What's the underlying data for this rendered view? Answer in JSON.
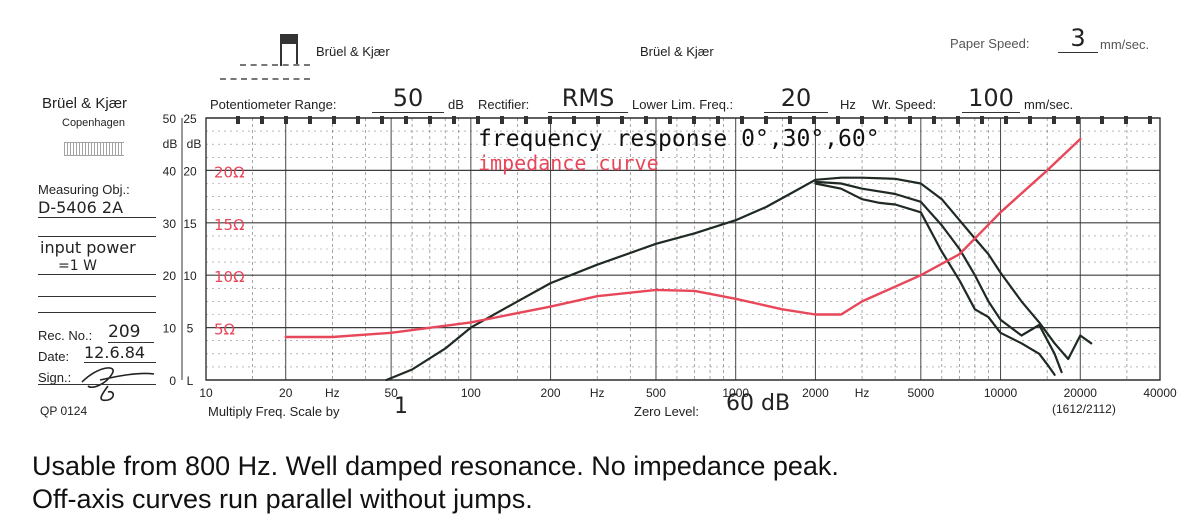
{
  "header": {
    "paper_speed_label": "Paper Speed:",
    "paper_speed_value": "3",
    "paper_speed_unit": "mm/sec.",
    "brand_center_left": "Brüel & Kjær",
    "brand_center": "Brüel & Kjær",
    "brand_left": "Brüel & Kjær",
    "city": "Copenhagen",
    "pot_range_label": "Potentiometer Range:",
    "pot_range_value": "50",
    "pot_range_unit": "dB",
    "rectifier_label": "Rectifier:",
    "rectifier_value": "RMS",
    "lower_lim_label": "Lower Lim. Freq.:",
    "lower_lim_value": "20",
    "lower_lim_unit": "Hz",
    "wr_speed_label": "Wr. Speed:",
    "wr_speed_value": "100",
    "wr_speed_unit": "mm/sec."
  },
  "side": {
    "measuring_obj_label": "Measuring Obj.:",
    "measuring_obj_value": "D-5406  2A",
    "input_power_label": "input  power",
    "input_power_value": "=1 W",
    "rec_no_label": "Rec. No.:",
    "rec_no_value": "209",
    "date_label": "Date:",
    "date_value": "12.6.84",
    "sign_label": "Sign.:",
    "qp_code": "QP 0124"
  },
  "footer": {
    "multiply_label": "Multiply Freq. Scale by",
    "multiply_value": "1",
    "zero_level_label": "Zero Level:",
    "zero_level_value": "60 dB",
    "code": "(1612/2112)"
  },
  "caption": {
    "line1": "Usable from 800 Hz. Well damped resonance. No impedance peak.",
    "line2": "Off-axis curves run parallel without jumps."
  },
  "chart_data": {
    "type": "line",
    "title": "frequency  response  0°,30°,60°",
    "subtitle": "impedance  curve",
    "x_scale": "log",
    "xlim": [
      10,
      40000
    ],
    "ylim": [
      0,
      50
    ],
    "x_ticks": [
      {
        "v": 10,
        "label": "10"
      },
      {
        "v": 20,
        "label": "20"
      },
      {
        "v": 30,
        "label": "Hz"
      },
      {
        "v": 50,
        "label": "50"
      },
      {
        "v": 100,
        "label": "100"
      },
      {
        "v": 200,
        "label": "200"
      },
      {
        "v": 300,
        "label": "Hz"
      },
      {
        "v": 500,
        "label": "500"
      },
      {
        "v": 1000,
        "label": "1000"
      },
      {
        "v": 2000,
        "label": "2000"
      },
      {
        "v": 3000,
        "label": "Hz"
      },
      {
        "v": 5000,
        "label": "5000"
      },
      {
        "v": 10000,
        "label": "10000"
      },
      {
        "v": 20000,
        "label": "20000"
      },
      {
        "v": 40000,
        "label": "40000"
      }
    ],
    "y_unit_labels": [
      "dB",
      "dB"
    ],
    "y_ticks_outer": [
      {
        "v": 0,
        "label": "0"
      },
      {
        "v": 10,
        "label": "10"
      },
      {
        "v": 20,
        "label": "20"
      },
      {
        "v": 30,
        "label": "30"
      },
      {
        "v": 40,
        "label": "40"
      },
      {
        "v": 50,
        "label": "50"
      }
    ],
    "y_ticks_inner": [
      {
        "v": 0,
        "label": "L"
      },
      {
        "v": 10,
        "label": "5"
      },
      {
        "v": 20,
        "label": "10"
      },
      {
        "v": 30,
        "label": "15"
      },
      {
        "v": 40,
        "label": "20"
      },
      {
        "v": 50,
        "label": "25"
      }
    ],
    "impedance_labels": [
      {
        "v": 40,
        "label": "20Ω"
      },
      {
        "v": 30,
        "label": "15Ω"
      },
      {
        "v": 20,
        "label": "10Ω"
      },
      {
        "v": 10,
        "label": "5Ω"
      }
    ],
    "colors": {
      "response": "#1e2a22",
      "impedance": "#e8475a",
      "grid": "#333333"
    },
    "series": [
      {
        "color": "#1e2a22",
        "x": [
          48,
          60,
          80,
          100,
          150,
          200,
          300,
          500,
          700,
          1000,
          1300,
          1600,
          2000,
          2500,
          3000,
          4000,
          5000,
          6000,
          7000,
          8000,
          9000,
          10000,
          12000,
          14000,
          16000,
          18000,
          20000,
          22000
        ],
        "y": [
          0,
          2,
          6,
          10,
          15,
          18.5,
          22,
          26,
          28,
          30.5,
          33,
          35.5,
          38.2,
          38.6,
          38.6,
          38.4,
          37.5,
          34.5,
          30.5,
          27.0,
          24.0,
          20.5,
          15.0,
          11.0,
          7.0,
          4.0,
          8.5,
          7.0
        ]
      },
      {
        "color": "#1e2a22",
        "x": [
          2000,
          2500,
          3000,
          4000,
          5000,
          6000,
          7000,
          8000,
          9000,
          10000,
          12000,
          14000,
          16000,
          17000
        ],
        "y": [
          37.8,
          37.5,
          36.5,
          35.5,
          34.0,
          29.5,
          25.0,
          20.0,
          15.0,
          11.5,
          8.5,
          10.5,
          5.0,
          1.5
        ]
      },
      {
        "color": "#1e2a22",
        "x": [
          2000,
          2500,
          3000,
          3500,
          4000,
          5000,
          6000,
          7000,
          8000,
          9000,
          10000,
          12000,
          14000,
          15000,
          16000
        ],
        "y": [
          37.5,
          36.5,
          34.5,
          33.8,
          33.5,
          32.0,
          24.5,
          19.0,
          13.5,
          12.0,
          9.0,
          7.0,
          5.0,
          3.0,
          1.0
        ]
      },
      {
        "color": "#e8475a",
        "x": [
          20,
          30,
          50,
          100,
          200,
          300,
          500,
          700,
          1000,
          1500,
          2000,
          2500,
          3000,
          5000,
          7000,
          10000,
          15000,
          20000
        ],
        "y": [
          8.2,
          8.2,
          9.0,
          11.0,
          14.0,
          16.0,
          17.2,
          17.0,
          15.5,
          13.5,
          12.5,
          12.5,
          15.0,
          20.0,
          24.0,
          32.0,
          40.0,
          46.0
        ]
      }
    ]
  }
}
